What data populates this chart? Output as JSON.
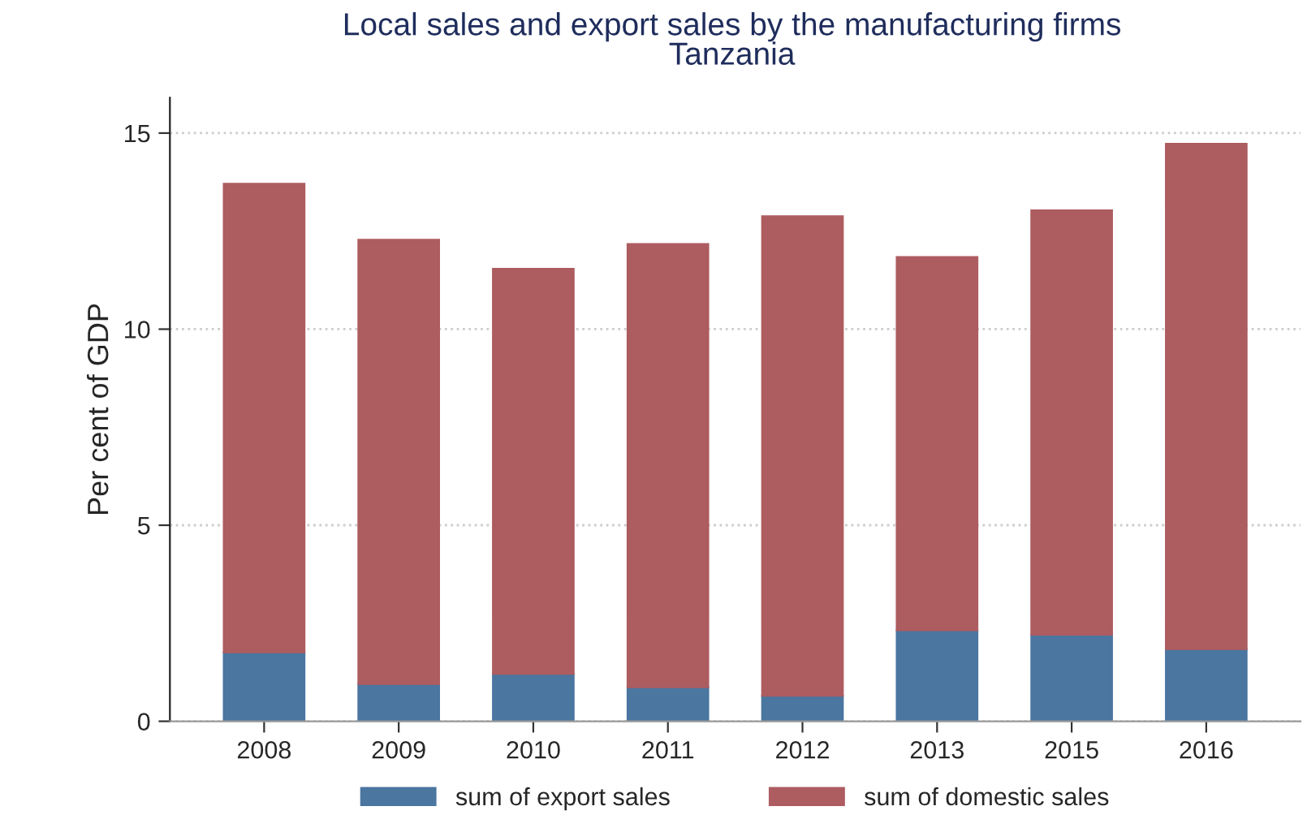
{
  "chart_data": {
    "type": "bar",
    "title": "Local sales and export sales by the manufacturing firms",
    "subtitle": "Tanzania",
    "ylabel": "Per cent of GDP",
    "categories": [
      "2008",
      "2009",
      "2010",
      "2011",
      "2012",
      "2013",
      "2015",
      "2016"
    ],
    "stacked": true,
    "series": [
      {
        "name": "sum of export sales",
        "color": "#4a76a0",
        "values": [
          1.76,
          0.95,
          1.21,
          0.87,
          0.65,
          2.32,
          2.21,
          1.84
        ]
      },
      {
        "name": "sum of domestic sales",
        "color": "#ad5c60",
        "values": [
          11.95,
          11.33,
          10.33,
          11.3,
          12.23,
          9.52,
          10.82,
          12.89
        ]
      }
    ],
    "ylim": [
      0,
      15.9
    ],
    "yticks": [
      0,
      5,
      10,
      15
    ],
    "grid": "y",
    "legend": "bottom"
  }
}
